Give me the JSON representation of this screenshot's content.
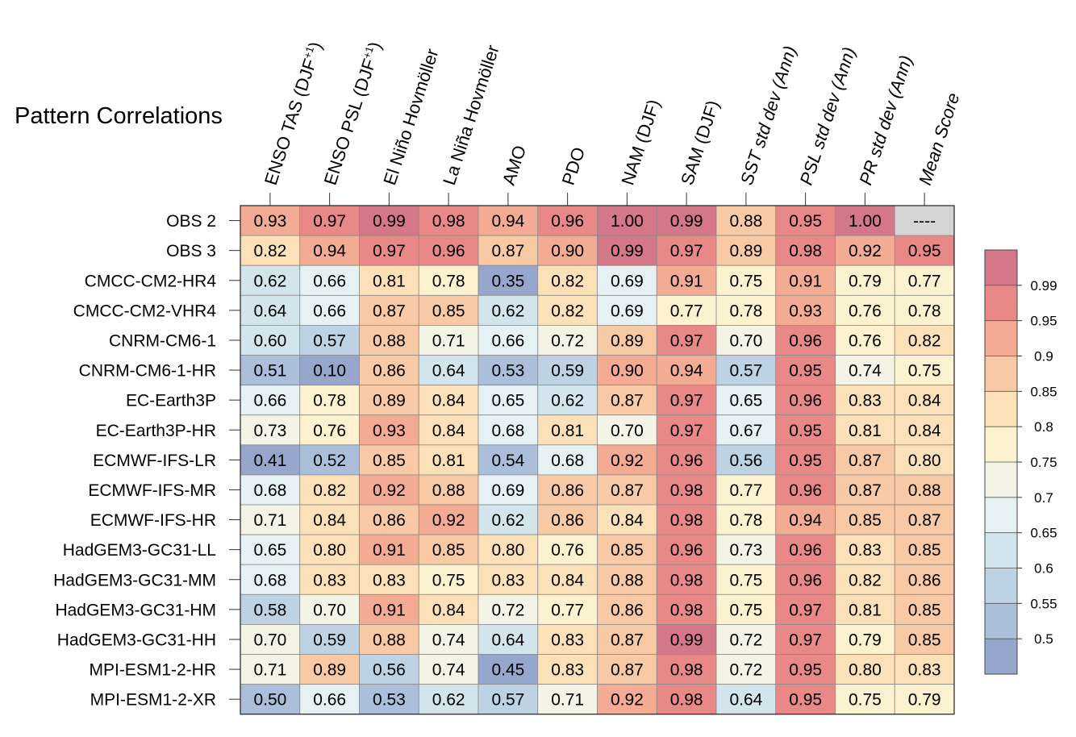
{
  "chart_data": {
    "type": "heatmap",
    "title": "Pattern Correlations",
    "columns": [
      "ENSO TAS (DJF⁺¹)",
      "ENSO PSL (DJF⁺¹)",
      "El Niño Hovmöller",
      "La Niña Hovmöller",
      "AMO",
      "PDO",
      "NAM (DJF)",
      "SAM (DJF)",
      "SST std dev (Ann)",
      "PSL std dev (Ann)",
      "PR std dev (Ann)",
      "Mean Score"
    ],
    "italic_columns": [
      8,
      9,
      10,
      11
    ],
    "rows": [
      "OBS 2",
      "OBS 3",
      "CMCC-CM2-HR4",
      "CMCC-CM2-VHR4",
      "CNRM-CM6-1",
      "CNRM-CM6-1-HR",
      "EC-Earth3P",
      "EC-Earth3P-HR",
      "ECMWF-IFS-LR",
      "ECMWF-IFS-MR",
      "ECMWF-IFS-HR",
      "HadGEM3-GC31-LL",
      "HadGEM3-GC31-MM",
      "HadGEM3-GC31-HM",
      "HadGEM3-GC31-HH",
      "MPI-ESM1-2-HR",
      "MPI-ESM1-2-XR"
    ],
    "values": [
      [
        "0.93",
        "0.97",
        "0.99",
        "0.98",
        "0.94",
        "0.96",
        "1.00",
        "0.99",
        "0.88",
        "0.95",
        "1.00",
        "----"
      ],
      [
        "0.82",
        "0.94",
        "0.97",
        "0.96",
        "0.87",
        "0.90",
        "0.99",
        "0.97",
        "0.89",
        "0.98",
        "0.92",
        "0.95"
      ],
      [
        "0.62",
        "0.66",
        "0.81",
        "0.78",
        "0.35",
        "0.82",
        "0.69",
        "0.91",
        "0.75",
        "0.91",
        "0.79",
        "0.77"
      ],
      [
        "0.64",
        "0.66",
        "0.87",
        "0.85",
        "0.62",
        "0.82",
        "0.69",
        "0.77",
        "0.78",
        "0.93",
        "0.76",
        "0.78"
      ],
      [
        "0.60",
        "0.57",
        "0.88",
        "0.71",
        "0.66",
        "0.72",
        "0.89",
        "0.97",
        "0.70",
        "0.96",
        "0.76",
        "0.82"
      ],
      [
        "0.51",
        "0.10",
        "0.86",
        "0.64",
        "0.53",
        "0.59",
        "0.90",
        "0.94",
        "0.57",
        "0.95",
        "0.74",
        "0.75"
      ],
      [
        "0.66",
        "0.78",
        "0.89",
        "0.84",
        "0.65",
        "0.62",
        "0.87",
        "0.97",
        "0.65",
        "0.96",
        "0.83",
        "0.84"
      ],
      [
        "0.73",
        "0.76",
        "0.93",
        "0.84",
        "0.68",
        "0.81",
        "0.70",
        "0.97",
        "0.67",
        "0.95",
        "0.81",
        "0.84"
      ],
      [
        "0.41",
        "0.52",
        "0.85",
        "0.81",
        "0.54",
        "0.68",
        "0.92",
        "0.96",
        "0.56",
        "0.95",
        "0.87",
        "0.80"
      ],
      [
        "0.68",
        "0.82",
        "0.92",
        "0.88",
        "0.69",
        "0.86",
        "0.87",
        "0.98",
        "0.77",
        "0.96",
        "0.87",
        "0.88"
      ],
      [
        "0.71",
        "0.84",
        "0.86",
        "0.92",
        "0.62",
        "0.86",
        "0.84",
        "0.98",
        "0.78",
        "0.94",
        "0.85",
        "0.87"
      ],
      [
        "0.65",
        "0.80",
        "0.91",
        "0.85",
        "0.80",
        "0.76",
        "0.85",
        "0.96",
        "0.73",
        "0.96",
        "0.83",
        "0.85"
      ],
      [
        "0.68",
        "0.83",
        "0.83",
        "0.75",
        "0.83",
        "0.84",
        "0.88",
        "0.98",
        "0.75",
        "0.96",
        "0.82",
        "0.86"
      ],
      [
        "0.58",
        "0.70",
        "0.91",
        "0.84",
        "0.72",
        "0.77",
        "0.86",
        "0.98",
        "0.75",
        "0.97",
        "0.81",
        "0.85"
      ],
      [
        "0.70",
        "0.59",
        "0.88",
        "0.74",
        "0.64",
        "0.83",
        "0.87",
        "0.99",
        "0.72",
        "0.97",
        "0.79",
        "0.85"
      ],
      [
        "0.71",
        "0.89",
        "0.56",
        "0.74",
        "0.45",
        "0.83",
        "0.87",
        "0.98",
        "0.72",
        "0.95",
        "0.80",
        "0.83"
      ],
      [
        "0.50",
        "0.66",
        "0.53",
        "0.62",
        "0.57",
        "0.71",
        "0.92",
        "0.98",
        "0.64",
        "0.95",
        "0.75",
        "0.79"
      ]
    ],
    "colorbar": {
      "labels": [
        "0.99",
        "0.95",
        "0.9",
        "0.85",
        "0.8",
        "0.75",
        "0.7",
        "0.65",
        "0.6",
        "0.55",
        "0.5"
      ],
      "thresholds": [
        0.5,
        0.55,
        0.6,
        0.65,
        0.7,
        0.75,
        0.8,
        0.85,
        0.9,
        0.95,
        0.99
      ],
      "colors": [
        "#97a6cd",
        "#abbfda",
        "#bdd3e4",
        "#d2e4ec",
        "#e5f1f3",
        "#f3f3e6",
        "#fdf2d0",
        "#fce1b8",
        "#f8c9a5",
        "#f3ab93",
        "#e88987",
        "#d47789"
      ],
      "missing_color": "#d4d4d4"
    }
  }
}
